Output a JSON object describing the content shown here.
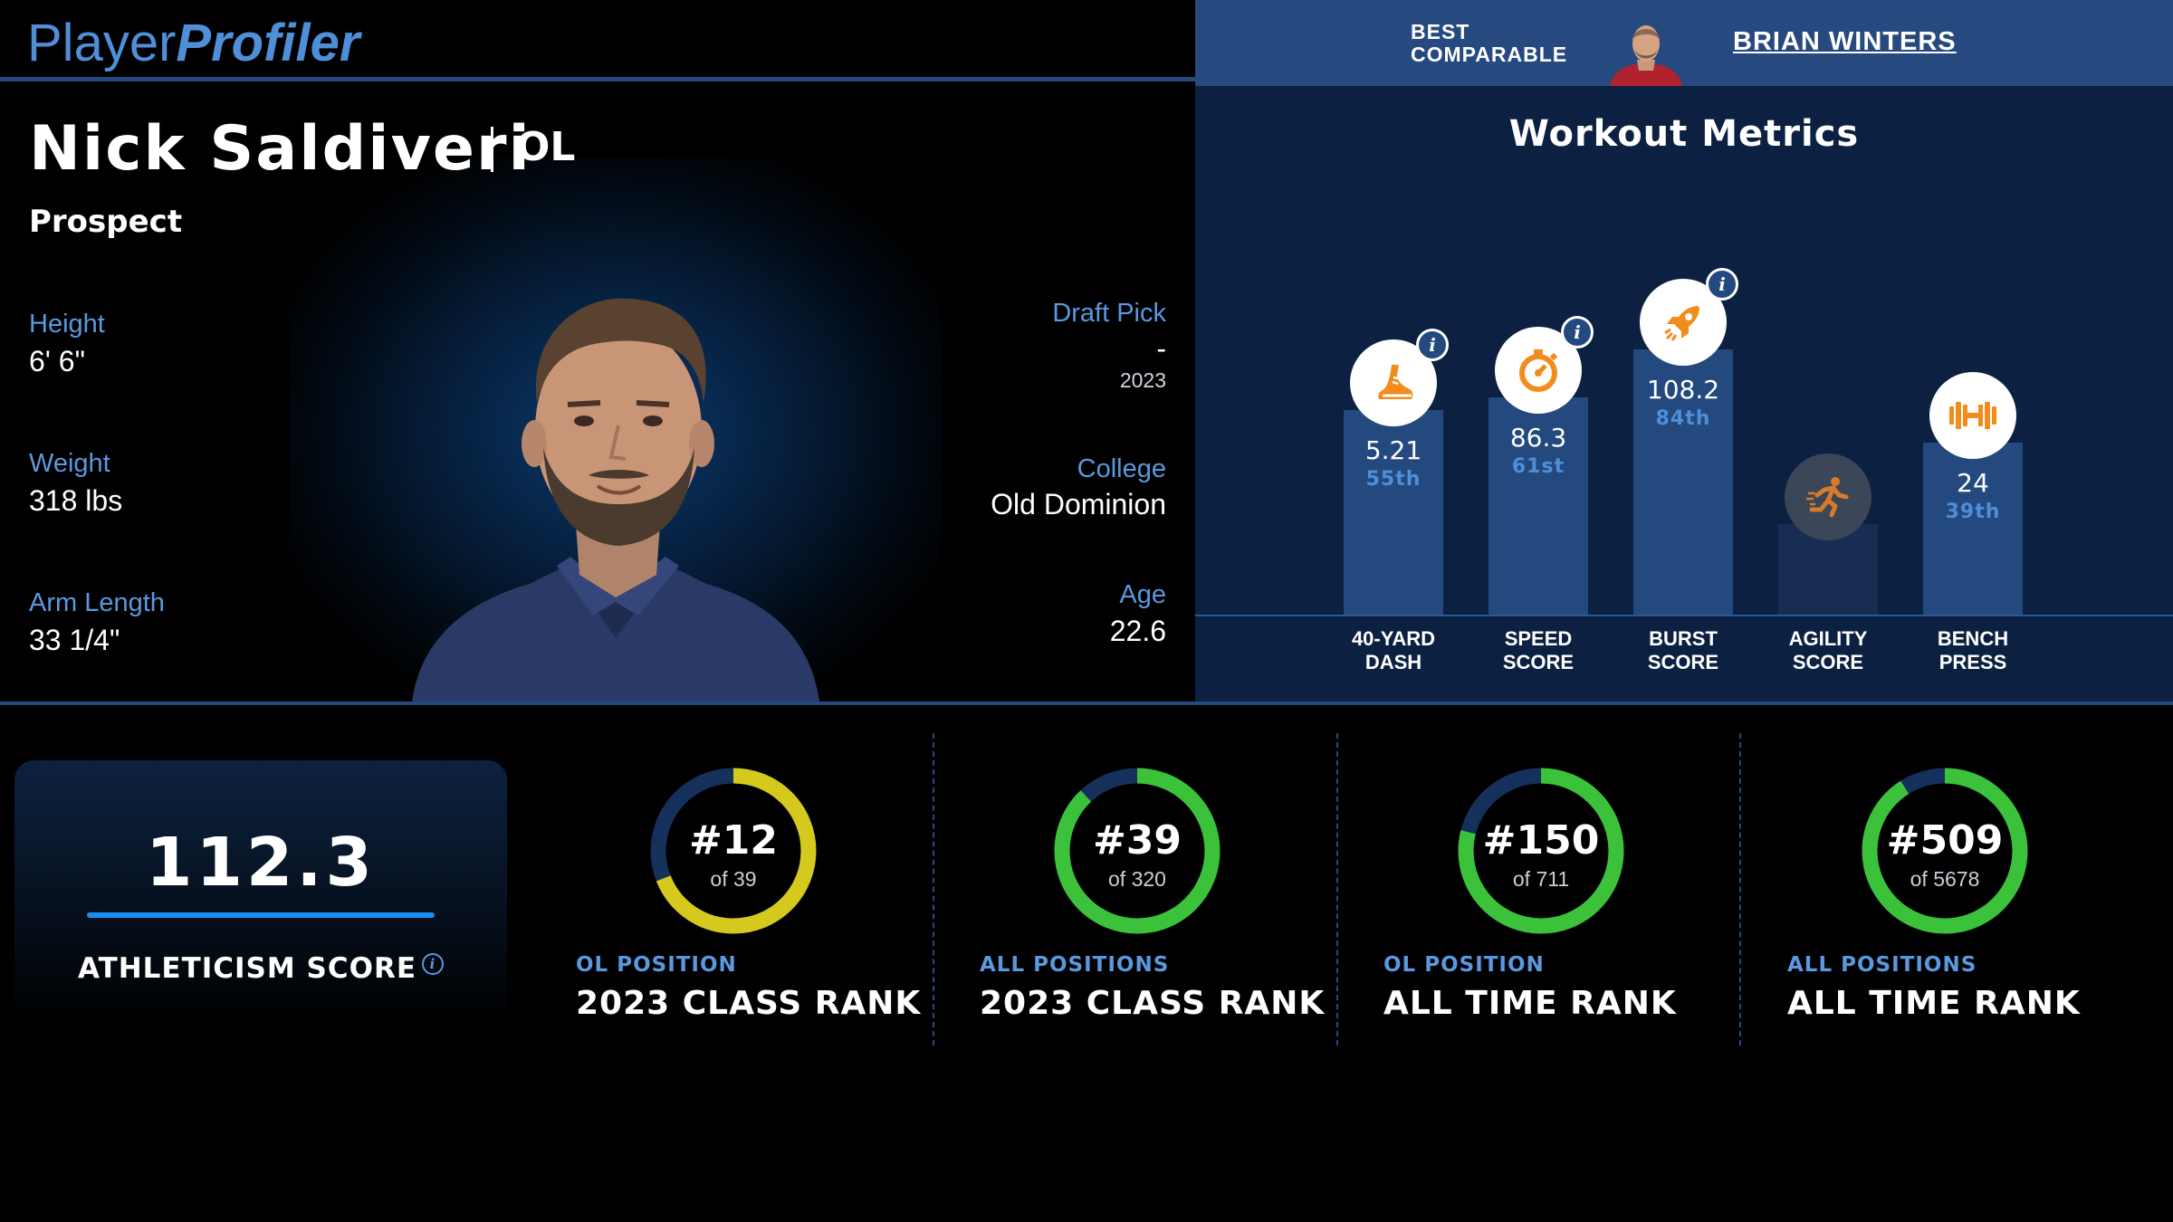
{
  "header": {
    "logo_part1": "Player",
    "logo_part2": "Profiler",
    "best_comparable_line1": "BEST",
    "best_comparable_line2": "COMPARABLE",
    "comparable_name": "BRIAN WINTERS"
  },
  "player": {
    "name": "Nick Saldiveri",
    "position": "OL",
    "status": "Prospect",
    "height_label": "Height",
    "height": "6' 6\"",
    "weight_label": "Weight",
    "weight": "318 lbs",
    "arm_label": "Arm Length",
    "arm_length": "33 1/4\"",
    "draft_label": "Draft Pick",
    "draft_pick": "-",
    "draft_year": "2023",
    "college_label": "College",
    "college": "Old Dominion",
    "age_label": "Age",
    "age": "22.6"
  },
  "workout": {
    "title": "Workout Metrics",
    "metrics": [
      {
        "label_line1": "40-YARD",
        "label_line2": "DASH",
        "value": "5.21",
        "percentile": "55th",
        "pct": 55,
        "icon": "shoe-icon",
        "available": true
      },
      {
        "label_line1": "SPEED",
        "label_line2": "SCORE",
        "value": "86.3",
        "percentile": "61st",
        "pct": 61,
        "icon": "stopwatch-icon",
        "available": true
      },
      {
        "label_line1": "BURST",
        "label_line2": "SCORE",
        "value": "108.2",
        "percentile": "84th",
        "pct": 84,
        "icon": "rocket-icon",
        "available": true
      },
      {
        "label_line1": "AGILITY",
        "label_line2": "SCORE",
        "value": "",
        "percentile": "",
        "pct": 0,
        "icon": "runner-icon",
        "available": false
      },
      {
        "label_line1": "BENCH",
        "label_line2": "PRESS",
        "value": "24",
        "percentile": "39th",
        "pct": 39,
        "icon": "barbell-icon",
        "available": true
      }
    ]
  },
  "athleticism": {
    "score": "112.3",
    "label": "ATHLETICISM SCORE"
  },
  "ranks": [
    {
      "rank": "#12",
      "of": "of 39",
      "category": "OL POSITION",
      "title": "2023 CLASS RANK",
      "fraction": 0.69,
      "color": "#d4c91c"
    },
    {
      "rank": "#39",
      "of": "of 320",
      "category": "ALL POSITIONS",
      "title": "2023 CLASS RANK",
      "fraction": 0.88,
      "color": "#3cc23a"
    },
    {
      "rank": "#150",
      "of": "of 711",
      "category": "OL POSITION",
      "title": "ALL TIME RANK",
      "fraction": 0.79,
      "color": "#3cc23a"
    },
    {
      "rank": "#509",
      "of": "of 5678",
      "category": "ALL POSITIONS",
      "title": "ALL TIME RANK",
      "fraction": 0.91,
      "color": "#3cc23a"
    }
  ],
  "colors": {
    "accent": "#4f8fd8",
    "panel": "#0c2041",
    "bar": "#24497e",
    "orange": "#f28c1c"
  }
}
